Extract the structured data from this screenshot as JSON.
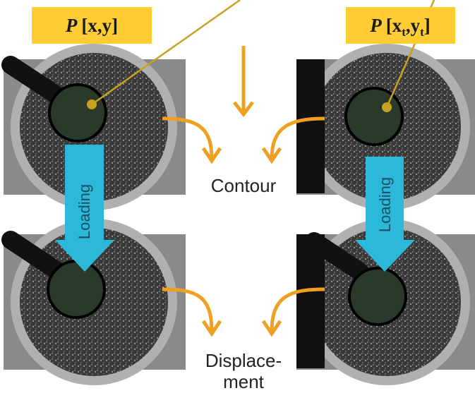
{
  "labels": [
    {
      "symbol": "P",
      "segments": [
        {
          "text": "[x,y]"
        }
      ]
    },
    {
      "symbol": "P",
      "segments": [
        {
          "text": "[x"
        },
        {
          "text": "t",
          "sub": true
        },
        {
          "text": ",y"
        },
        {
          "text": "t",
          "sub": true
        },
        {
          "text": "]"
        }
      ]
    }
  ],
  "loading": [
    "Loading",
    "Loading"
  ],
  "outputs": {
    "contour": "Contour",
    "displacement": [
      "Displace-",
      "ment"
    ]
  }
}
